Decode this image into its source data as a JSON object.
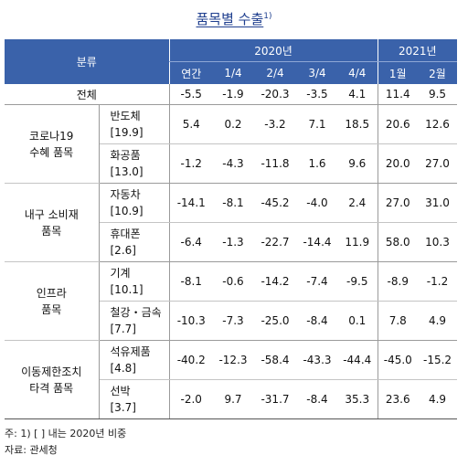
{
  "title": "품목별 수출",
  "title_sup": "1)",
  "header": {
    "category": "분류",
    "year1": "2020년",
    "year2": "2021년",
    "cols": [
      "연간",
      "1/4",
      "2/4",
      "3/4",
      "4/4",
      "1월",
      "2월"
    ]
  },
  "total": {
    "label": "전체",
    "values": [
      "-5.5",
      "-1.9",
      "-20.3",
      "-3.5",
      "4.1",
      "11.4",
      "9.5"
    ]
  },
  "groups": [
    {
      "label_lines": [
        "코로나19",
        "수혜 품목"
      ],
      "items": [
        {
          "name": "반도체",
          "weight": "[19.9]",
          "values": [
            "5.4",
            "0.2",
            "-3.2",
            "7.1",
            "18.5",
            "20.6",
            "12.6"
          ]
        },
        {
          "name": "화공품",
          "weight": "[13.0]",
          "values": [
            "-1.2",
            "-4.3",
            "-11.8",
            "1.6",
            "9.6",
            "20.0",
            "27.0"
          ]
        }
      ]
    },
    {
      "label_lines": [
        "내구 소비재",
        "품목"
      ],
      "items": [
        {
          "name": "자동차",
          "weight": "[10.9]",
          "values": [
            "-14.1",
            "-8.1",
            "-45.2",
            "-4.0",
            "2.4",
            "27.0",
            "31.0"
          ]
        },
        {
          "name": "휴대폰",
          "weight": "[2.6]",
          "values": [
            "-6.4",
            "-1.3",
            "-22.7",
            "-14.4",
            "11.9",
            "58.0",
            "10.3"
          ]
        }
      ]
    },
    {
      "label_lines": [
        "인프라",
        "품목"
      ],
      "items": [
        {
          "name": "기계",
          "weight": "[10.1]",
          "values": [
            "-8.1",
            "-0.6",
            "-14.2",
            "-7.4",
            "-9.5",
            "-8.9",
            "-1.2"
          ]
        },
        {
          "name": "철강・금속",
          "weight": "[7.7]",
          "values": [
            "-10.3",
            "-7.3",
            "-25.0",
            "-8.4",
            "0.1",
            "7.8",
            "4.9"
          ]
        }
      ]
    },
    {
      "label_lines": [
        "이동제한조치",
        "타격 품목"
      ],
      "items": [
        {
          "name": "석유제품",
          "weight": "[4.8]",
          "values": [
            "-40.2",
            "-12.3",
            "-58.4",
            "-43.3",
            "-44.4",
            "-45.0",
            "-15.2"
          ]
        },
        {
          "name": "선박",
          "weight": "[3.7]",
          "values": [
            "-2.0",
            "9.7",
            "-31.7",
            "-8.4",
            "35.3",
            "23.6",
            "4.9"
          ]
        }
      ]
    }
  ],
  "notes": {
    "note1": "주: 1) [  ] 내는 2020년 비중",
    "source": "자료: 관세청"
  }
}
